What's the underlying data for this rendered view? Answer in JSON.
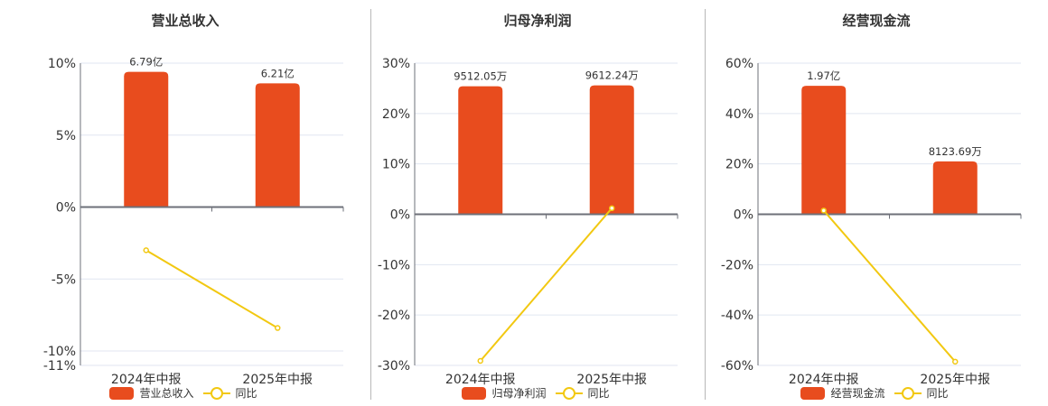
{
  "colors": {
    "bar": "#e84c1e",
    "line": "#f2c811",
    "axis": "#6e7079",
    "grid": "#e0e6f1",
    "text": "#333333"
  },
  "chart_data": [
    {
      "type": "bar+line",
      "title": "营业总收入",
      "categories": [
        "2024年中报",
        "2025年中报"
      ],
      "series": [
        {
          "name": "营业总收入",
          "type": "bar",
          "labels": [
            "6.79亿",
            "6.21亿"
          ],
          "values": [
            679000000,
            621000000
          ],
          "bar_height_pct": [
            9.4,
            8.6
          ]
        },
        {
          "name": "同比",
          "type": "line",
          "values": [
            -3.0,
            -8.4
          ]
        }
      ],
      "yaxis": {
        "ticks": [
          "10%",
          "5%",
          "0%",
          "-5%",
          "-10%",
          "-11%"
        ],
        "ylim": [
          -11,
          10
        ]
      },
      "legend": [
        "营业总收入",
        "同比"
      ],
      "legend_position": "bottom"
    },
    {
      "type": "bar+line",
      "title": "归母净利润",
      "categories": [
        "2024年中报",
        "2025年中报"
      ],
      "series": [
        {
          "name": "归母净利润",
          "type": "bar",
          "labels": [
            "9512.05万",
            "9612.24万"
          ],
          "values": [
            95120500,
            96122400
          ],
          "bar_height_pct": [
            25.4,
            25.6
          ]
        },
        {
          "name": "同比",
          "type": "line",
          "values": [
            -29.1,
            1.2
          ]
        }
      ],
      "yaxis": {
        "ticks": [
          "30%",
          "20%",
          "10%",
          "0%",
          "-10%",
          "-20%",
          "-30%"
        ],
        "ylim": [
          -30,
          30
        ]
      },
      "legend": [
        "归母净利润",
        "同比"
      ],
      "legend_position": "bottom"
    },
    {
      "type": "bar+line",
      "title": "经营现金流",
      "categories": [
        "2024年中报",
        "2025年中报"
      ],
      "series": [
        {
          "name": "经营现金流",
          "type": "bar",
          "labels": [
            "1.97亿",
            "8123.69万"
          ],
          "values": [
            197000000,
            81236900
          ],
          "bar_height_pct": [
            51,
            21
          ]
        },
        {
          "name": "同比",
          "type": "line",
          "values": [
            1.5,
            -58.5
          ]
        }
      ],
      "yaxis": {
        "ticks": [
          "60%",
          "40%",
          "20%",
          "0%",
          "-20%",
          "-40%",
          "-60%"
        ],
        "ylim": [
          -60,
          60
        ]
      },
      "legend": [
        "经营现金流",
        "同比"
      ],
      "legend_position": "bottom"
    }
  ],
  "panels": [
    {
      "title": "营业总收入",
      "legend_bar": "营业总收入",
      "legend_line": "同比"
    },
    {
      "title": "归母净利润",
      "legend_bar": "归母净利润",
      "legend_line": "同比"
    },
    {
      "title": "经营现金流",
      "legend_bar": "经营现金流",
      "legend_line": "同比"
    }
  ]
}
